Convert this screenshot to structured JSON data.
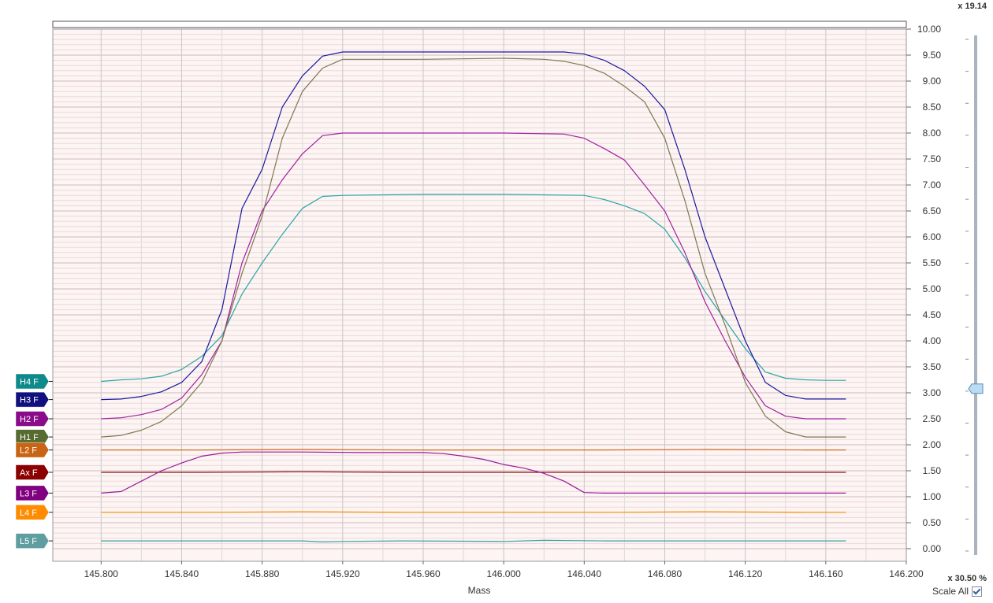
{
  "zoom_top": "x 19.14",
  "zoom_bottom": "x 30.50 %",
  "scale_all_label": "Scale All",
  "scale_all_checked": true,
  "slider_level_fraction": 0.68,
  "chart_data": {
    "type": "line",
    "xlabel": "Mass",
    "ylabel": "",
    "xlim": [
      145.8,
      146.2
    ],
    "ylim": [
      0,
      10
    ],
    "grid": true,
    "x_ticks": [
      "145.800",
      "145.840",
      "145.880",
      "145.920",
      "145.960",
      "146.000",
      "146.040",
      "146.080",
      "146.120",
      "146.160",
      "146.200"
    ],
    "y_ticks": [
      "0.00",
      "0.50",
      "1.00",
      "1.50",
      "2.00",
      "2.50",
      "3.00",
      "3.50",
      "4.00",
      "4.50",
      "5.00",
      "5.50",
      "6.00",
      "6.50",
      "7.00",
      "7.50",
      "8.00",
      "8.50",
      "9.00",
      "9.50",
      "10.00"
    ],
    "series": [
      {
        "name": "H4 F",
        "color": "#2aa5a5",
        "tag_color": "#0e8a8a",
        "points": [
          [
            145.8,
            3.22
          ],
          [
            145.81,
            3.25
          ],
          [
            145.82,
            3.27
          ],
          [
            145.83,
            3.32
          ],
          [
            145.84,
            3.45
          ],
          [
            145.85,
            3.7
          ],
          [
            145.86,
            4.1
          ],
          [
            145.87,
            4.9
          ],
          [
            145.88,
            5.5
          ],
          [
            145.89,
            6.05
          ],
          [
            145.9,
            6.55
          ],
          [
            145.91,
            6.78
          ],
          [
            145.92,
            6.8
          ],
          [
            145.96,
            6.82
          ],
          [
            146.0,
            6.82
          ],
          [
            146.04,
            6.8
          ],
          [
            146.05,
            6.72
          ],
          [
            146.06,
            6.6
          ],
          [
            146.07,
            6.45
          ],
          [
            146.08,
            6.15
          ],
          [
            146.09,
            5.6
          ],
          [
            146.1,
            4.95
          ],
          [
            146.11,
            4.4
          ],
          [
            146.12,
            3.85
          ],
          [
            146.13,
            3.4
          ],
          [
            146.14,
            3.28
          ],
          [
            146.15,
            3.25
          ],
          [
            146.16,
            3.24
          ],
          [
            146.17,
            3.24
          ]
        ]
      },
      {
        "name": "H3 F",
        "color": "#1a1a9e",
        "tag_color": "#10107e",
        "points": [
          [
            145.8,
            2.87
          ],
          [
            145.81,
            2.88
          ],
          [
            145.82,
            2.93
          ],
          [
            145.83,
            3.02
          ],
          [
            145.84,
            3.2
          ],
          [
            145.85,
            3.6
          ],
          [
            145.86,
            4.6
          ],
          [
            145.87,
            6.55
          ],
          [
            145.88,
            7.3
          ],
          [
            145.89,
            8.5
          ],
          [
            145.9,
            9.1
          ],
          [
            145.91,
            9.48
          ],
          [
            145.92,
            9.56
          ],
          [
            146.0,
            9.56
          ],
          [
            146.03,
            9.56
          ],
          [
            146.04,
            9.52
          ],
          [
            146.05,
            9.4
          ],
          [
            146.06,
            9.2
          ],
          [
            146.07,
            8.9
          ],
          [
            146.08,
            8.45
          ],
          [
            146.09,
            7.3
          ],
          [
            146.1,
            6.0
          ],
          [
            146.11,
            5.0
          ],
          [
            146.12,
            4.0
          ],
          [
            146.13,
            3.2
          ],
          [
            146.14,
            2.95
          ],
          [
            146.15,
            2.88
          ],
          [
            146.16,
            2.88
          ],
          [
            146.17,
            2.88
          ]
        ]
      },
      {
        "name": "H2 F",
        "color": "#a020a0",
        "tag_color": "#8a0c8a",
        "points": [
          [
            145.8,
            2.5
          ],
          [
            145.81,
            2.52
          ],
          [
            145.82,
            2.58
          ],
          [
            145.83,
            2.68
          ],
          [
            145.84,
            2.9
          ],
          [
            145.85,
            3.35
          ],
          [
            145.86,
            4.0
          ],
          [
            145.87,
            5.5
          ],
          [
            145.88,
            6.5
          ],
          [
            145.89,
            7.1
          ],
          [
            145.9,
            7.6
          ],
          [
            145.91,
            7.95
          ],
          [
            145.92,
            8.0
          ],
          [
            145.96,
            8.0
          ],
          [
            146.0,
            8.0
          ],
          [
            146.03,
            7.98
          ],
          [
            146.04,
            7.9
          ],
          [
            146.05,
            7.7
          ],
          [
            146.06,
            7.48
          ],
          [
            146.07,
            7.0
          ],
          [
            146.08,
            6.5
          ],
          [
            146.09,
            5.7
          ],
          [
            146.1,
            4.75
          ],
          [
            146.11,
            4.0
          ],
          [
            146.12,
            3.3
          ],
          [
            146.13,
            2.75
          ],
          [
            146.14,
            2.55
          ],
          [
            146.15,
            2.5
          ],
          [
            146.17,
            2.5
          ]
        ]
      },
      {
        "name": "H1 F",
        "color": "#7a7a50",
        "tag_color": "#556b2f",
        "points": [
          [
            145.8,
            2.15
          ],
          [
            145.81,
            2.18
          ],
          [
            145.82,
            2.28
          ],
          [
            145.83,
            2.45
          ],
          [
            145.84,
            2.75
          ],
          [
            145.85,
            3.2
          ],
          [
            145.86,
            4.0
          ],
          [
            145.87,
            5.3
          ],
          [
            145.88,
            6.4
          ],
          [
            145.89,
            7.9
          ],
          [
            145.9,
            8.8
          ],
          [
            145.91,
            9.25
          ],
          [
            145.92,
            9.42
          ],
          [
            145.96,
            9.42
          ],
          [
            146.0,
            9.44
          ],
          [
            146.02,
            9.42
          ],
          [
            146.03,
            9.38
          ],
          [
            146.04,
            9.3
          ],
          [
            146.05,
            9.15
          ],
          [
            146.06,
            8.9
          ],
          [
            146.07,
            8.6
          ],
          [
            146.08,
            7.9
          ],
          [
            146.09,
            6.7
          ],
          [
            146.1,
            5.3
          ],
          [
            146.11,
            4.3
          ],
          [
            146.12,
            3.2
          ],
          [
            146.13,
            2.55
          ],
          [
            146.14,
            2.25
          ],
          [
            146.15,
            2.15
          ],
          [
            146.17,
            2.15
          ]
        ]
      },
      {
        "name": "L2 F",
        "color": "#d2691e",
        "tag_color": "#c86414",
        "points": [
          [
            145.8,
            1.9
          ],
          [
            145.85,
            1.9
          ],
          [
            145.9,
            1.91
          ],
          [
            145.95,
            1.9
          ],
          [
            146.0,
            1.9
          ],
          [
            146.05,
            1.9
          ],
          [
            146.1,
            1.91
          ],
          [
            146.15,
            1.9
          ],
          [
            146.17,
            1.9
          ]
        ]
      },
      {
        "name": "Ax F",
        "color": "#8b1010",
        "tag_color": "#8b0000",
        "points": [
          [
            145.8,
            1.47
          ],
          [
            145.85,
            1.47
          ],
          [
            145.9,
            1.48
          ],
          [
            145.95,
            1.47
          ],
          [
            146.0,
            1.47
          ],
          [
            146.05,
            1.47
          ],
          [
            146.1,
            1.47
          ],
          [
            146.15,
            1.47
          ],
          [
            146.17,
            1.47
          ]
        ]
      },
      {
        "name": "L3 F",
        "color": "#9a1a9a",
        "tag_color": "#800080",
        "points": [
          [
            145.8,
            1.07
          ],
          [
            145.81,
            1.1
          ],
          [
            145.82,
            1.3
          ],
          [
            145.83,
            1.5
          ],
          [
            145.84,
            1.65
          ],
          [
            145.85,
            1.78
          ],
          [
            145.86,
            1.84
          ],
          [
            145.87,
            1.86
          ],
          [
            145.9,
            1.86
          ],
          [
            145.93,
            1.85
          ],
          [
            145.96,
            1.85
          ],
          [
            145.97,
            1.83
          ],
          [
            145.98,
            1.78
          ],
          [
            145.99,
            1.72
          ],
          [
            146.0,
            1.62
          ],
          [
            146.01,
            1.55
          ],
          [
            146.02,
            1.45
          ],
          [
            146.03,
            1.3
          ],
          [
            146.04,
            1.08
          ],
          [
            146.05,
            1.07
          ],
          [
            146.17,
            1.07
          ]
        ]
      },
      {
        "name": "L4 F",
        "color": "#ff8c00",
        "tag_color": "#ff8c00",
        "points": [
          [
            145.8,
            0.7
          ],
          [
            145.85,
            0.7
          ],
          [
            145.9,
            0.71
          ],
          [
            145.95,
            0.7
          ],
          [
            146.0,
            0.7
          ],
          [
            146.05,
            0.7
          ],
          [
            146.1,
            0.71
          ],
          [
            146.15,
            0.7
          ],
          [
            146.17,
            0.7
          ]
        ]
      },
      {
        "name": "L5 F",
        "color": "#3aa0a0",
        "tag_color": "#5f9ea0",
        "points": [
          [
            145.8,
            0.15
          ],
          [
            145.85,
            0.15
          ],
          [
            145.9,
            0.15
          ],
          [
            145.91,
            0.13
          ],
          [
            145.92,
            0.14
          ],
          [
            145.95,
            0.15
          ],
          [
            146.0,
            0.14
          ],
          [
            146.02,
            0.16
          ],
          [
            146.05,
            0.15
          ],
          [
            146.1,
            0.15
          ],
          [
            146.15,
            0.15
          ],
          [
            146.17,
            0.15
          ]
        ]
      }
    ]
  }
}
